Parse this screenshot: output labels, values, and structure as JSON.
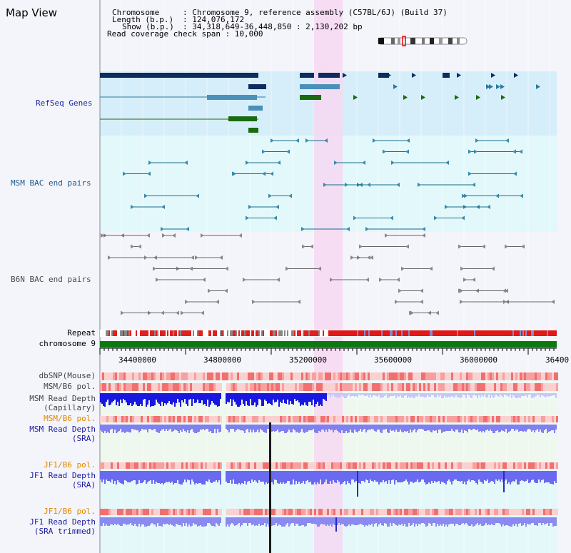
{
  "view": {
    "title": "Map View"
  },
  "header": {
    "chromosome_key": "Chromosome",
    "chromosome_value": ": Chromosome 9, reference assembly (C57BL/6J) (Build 37)",
    "length_key": "Length (b.p.)",
    "length_value": ": 124,076,172",
    "show_key": "Show (b.p.)",
    "show_value": ": 34,318,649-36,448,850 : 2,130,202 bp",
    "coverage": "Read coverage check span : 10,000"
  },
  "tracks": {
    "refseq": "RefSeq Genes",
    "msm_bac": "MSM BAC end pairs",
    "b6n_bac": "B6N BAC end pairs",
    "repeat": "Repeat",
    "chromosome": "chromosome 9",
    "dbsnp": "dbSNP(Mouse)",
    "msm_b6_pol_1": "MSM/B6 pol.",
    "msm_depth_cap_1": "MSM Read Depth",
    "msm_depth_cap_2": "(Capillary)",
    "msm_b6_pol_2": "MSM/B6 pol.",
    "msm_depth_sra_1": "MSM Read Depth",
    "msm_depth_sra_2": "(SRA)",
    "jf1_b6_pol_1": "JF1/B6 pol.",
    "jf1_depth_sra_1": "JF1 Read Depth",
    "jf1_depth_sra_2": "(SRA)",
    "jf1_b6_pol_2": "JF1/B6 pol.",
    "jf1_depth_trim_1": "JF1 Read Depth",
    "jf1_depth_trim_2": "(SRA trimmed)"
  },
  "axis": {
    "ticks": [
      "34400000",
      "34800000",
      "35200000",
      "35600000",
      "36000000",
      "36400"
    ]
  },
  "colors": {
    "refseq_bg": "#d8f0fa",
    "msm_bac_bg": "#e2f8fa",
    "highlight": "#f6d8f2",
    "repeat": "#e02020",
    "chromosome": "#0a7a10",
    "depth_blue": "#1818e0",
    "depth_light": "#7777f0"
  }
}
